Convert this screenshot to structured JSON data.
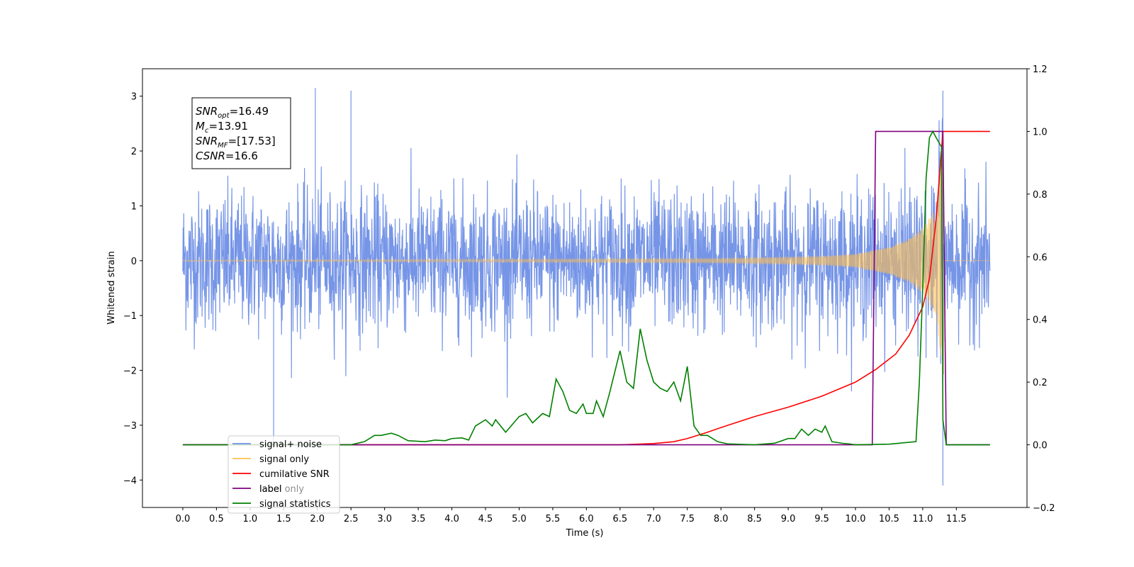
{
  "chart_data": {
    "type": "line",
    "xlabel": "Time (s)",
    "ylabel": "Whitened strain",
    "ylabel_right": "",
    "xlim": [
      -0.6,
      12.55
    ],
    "ylim": [
      -4.5,
      3.5
    ],
    "ylim_right": [
      -0.2,
      1.2
    ],
    "x_ticks": [
      0.0,
      0.5,
      1.0,
      1.5,
      2.0,
      2.5,
      3.0,
      3.5,
      4.0,
      4.5,
      5.0,
      5.5,
      6.0,
      6.5,
      7.0,
      7.5,
      8.0,
      8.5,
      9.0,
      9.5,
      10.0,
      10.5,
      11.0,
      11.5
    ],
    "x_tick_labels": [
      "0.0",
      "0.5",
      "1.0",
      "1.5",
      "2.0",
      "2.5",
      "3.0",
      "3.5",
      "4.0",
      "4.5",
      "5.0",
      "5.5",
      "6.0",
      "6.5",
      "7.0",
      "7.5",
      "8.0",
      "8.5",
      "9.0",
      "9.5",
      "10.0",
      "10.5",
      "11.0",
      "11.5"
    ],
    "y_ticks": [
      -4,
      -3,
      -2,
      -1,
      0,
      1,
      2,
      3
    ],
    "y_tick_labels": [
      "−4",
      "−3",
      "−2",
      "−1",
      "0",
      "1",
      "2",
      "3"
    ],
    "y_right_ticks": [
      -0.2,
      0.0,
      0.2,
      0.4,
      0.6,
      0.8,
      1.0,
      1.2
    ],
    "y_right_tick_labels": [
      "−0.2",
      "0.0",
      "0.2",
      "0.4",
      "0.6",
      "0.8",
      "1.0",
      "1.2"
    ],
    "grid": false,
    "legend_position": "lower-left",
    "series": [
      {
        "name": "signal+ noise",
        "color": "#6f8fe6",
        "axis": "left",
        "kind": "whitened-noise-plus-chirp",
        "x_range": [
          0.0,
          12.0
        ],
        "noise_std": 0.62,
        "extremes": [
          {
            "x": 1.35,
            "y": -3.3
          },
          {
            "x": 1.97,
            "y": 3.15
          },
          {
            "x": 2.5,
            "y": 3.1
          },
          {
            "x": 11.3,
            "y": 3.1
          },
          {
            "x": 11.3,
            "y": -4.1
          }
        ]
      },
      {
        "name": "signal only",
        "color": "#ffbf52",
        "axis": "left",
        "kind": "chirp",
        "x_range": [
          0.0,
          12.0
        ],
        "merger_time": 11.3,
        "peak_amplitude": 2.1,
        "envelope_points": [
          [
            0.0,
            0.01
          ],
          [
            8.0,
            0.04
          ],
          [
            9.5,
            0.08
          ],
          [
            10.0,
            0.12
          ],
          [
            10.5,
            0.25
          ],
          [
            10.8,
            0.4
          ],
          [
            11.0,
            0.6
          ],
          [
            11.2,
            1.0
          ],
          [
            11.3,
            2.1
          ]
        ]
      },
      {
        "name": "cumilative SNR",
        "color": "#ff0000",
        "axis": "right",
        "x": [
          0.0,
          6.5,
          7.0,
          7.3,
          7.5,
          7.8,
          8.0,
          8.5,
          9.0,
          9.5,
          10.0,
          10.3,
          10.6,
          10.8,
          11.0,
          11.1,
          11.2,
          11.3,
          11.32,
          12.0
        ],
        "y": [
          0.0,
          0.0,
          0.004,
          0.01,
          0.02,
          0.04,
          0.055,
          0.09,
          0.12,
          0.155,
          0.2,
          0.24,
          0.29,
          0.35,
          0.44,
          0.53,
          0.72,
          1.0,
          1.0,
          1.0
        ]
      },
      {
        "name": "label",
        "color": "#800080",
        "axis": "right",
        "x": [
          0.0,
          10.25,
          10.3,
          11.3,
          11.35,
          12.0
        ],
        "y": [
          0.0,
          0.0,
          1.0,
          1.0,
          0.0,
          0.0
        ]
      },
      {
        "name": "label only",
        "color": "#b0b0b0",
        "axis": "right",
        "legend_hidden_behind": true,
        "x": [],
        "y": []
      },
      {
        "name": "signal statistics",
        "color": "#008000",
        "axis": "right",
        "x": [
          0.0,
          2.5,
          2.7,
          2.85,
          2.95,
          3.1,
          3.2,
          3.35,
          3.6,
          3.75,
          3.9,
          4.0,
          4.15,
          4.25,
          4.35,
          4.5,
          4.6,
          4.65,
          4.8,
          5.0,
          5.1,
          5.2,
          5.35,
          5.45,
          5.55,
          5.65,
          5.75,
          5.85,
          5.95,
          6.0,
          6.1,
          6.15,
          6.25,
          6.35,
          6.5,
          6.6,
          6.7,
          6.8,
          6.9,
          7.0,
          7.1,
          7.2,
          7.3,
          7.4,
          7.5,
          7.6,
          7.7,
          7.8,
          7.95,
          8.1,
          8.5,
          8.8,
          9.0,
          9.1,
          9.2,
          9.3,
          9.4,
          9.5,
          9.55,
          9.65,
          9.8,
          9.9,
          10.0,
          10.5,
          10.9,
          10.95,
          11.0,
          11.05,
          11.1,
          11.15,
          11.2,
          11.28,
          11.3,
          11.35,
          12.0
        ],
        "y": [
          0.0,
          0.0,
          0.01,
          0.03,
          0.03,
          0.037,
          0.03,
          0.013,
          0.01,
          0.015,
          0.013,
          0.02,
          0.022,
          0.015,
          0.06,
          0.08,
          0.06,
          0.08,
          0.04,
          0.09,
          0.1,
          0.07,
          0.1,
          0.09,
          0.21,
          0.17,
          0.11,
          0.1,
          0.13,
          0.1,
          0.1,
          0.14,
          0.09,
          0.17,
          0.3,
          0.2,
          0.18,
          0.37,
          0.27,
          0.2,
          0.18,
          0.17,
          0.2,
          0.14,
          0.25,
          0.06,
          0.03,
          0.03,
          0.01,
          0.003,
          0.0,
          0.005,
          0.02,
          0.02,
          0.05,
          0.03,
          0.05,
          0.04,
          0.06,
          0.01,
          0.005,
          0.003,
          0.0,
          0.002,
          0.01,
          0.2,
          0.5,
          0.85,
          0.98,
          1.0,
          0.98,
          0.95,
          0.08,
          0.0,
          0.0
        ]
      }
    ],
    "info_box": {
      "lines": [
        {
          "main": "SNR",
          "sub": "opt",
          "rest": "=16.49"
        },
        {
          "main": "M",
          "sub": "c",
          "rest": "=13.91"
        },
        {
          "main": "SNR",
          "sub": "MF",
          "rest": "=[17.53]"
        },
        {
          "main": "CSNR",
          "sub": "",
          "rest": "=16.6"
        }
      ]
    },
    "legend": [
      {
        "label": "signal+ noise",
        "color": "#6f8fe6"
      },
      {
        "label": "signal only",
        "color": "#ffbf52"
      },
      {
        "label": "cumilative SNR",
        "color": "#ff0000"
      },
      {
        "label": "label",
        "color": "#800080"
      },
      {
        "label": "signal statistics",
        "color": "#008000"
      }
    ]
  }
}
